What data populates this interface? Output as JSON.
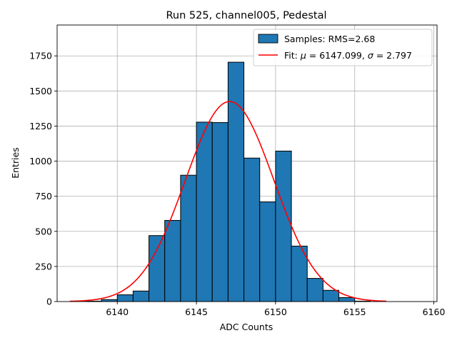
{
  "chart_data": {
    "type": "bar",
    "title": "Run 525, channel005, Pedestal",
    "xlabel": "ADC Counts",
    "ylabel": "Entries",
    "xlim": [
      6136.2,
      6160.2
    ],
    "ylim": [
      0,
      1970
    ],
    "xticks": [
      6140,
      6145,
      6150,
      6155,
      6160
    ],
    "yticks": [
      0,
      250,
      500,
      750,
      1000,
      1250,
      1500,
      1750
    ],
    "grid": true,
    "legend_position": "top-right",
    "bins": {
      "width": 1,
      "x": [
        6138,
        6139,
        6140,
        6141,
        6142,
        6143,
        6144,
        6145,
        6146,
        6147,
        6148,
        6149,
        6150,
        6151,
        6152,
        6153,
        6154,
        6155
      ],
      "values": [
        3,
        14,
        48,
        75,
        470,
        578,
        900,
        1278,
        1275,
        1705,
        1022,
        710,
        1072,
        395,
        165,
        80,
        28,
        3
      ]
    },
    "fit": {
      "mu": 6147.099,
      "sigma": 2.797,
      "amplitude": 1425,
      "x_range": [
        6137,
        6157
      ]
    },
    "series": [
      {
        "name": "Samples: RMS=2.68",
        "kind": "histogram",
        "color": "#1f77b4",
        "edge_color": "#000000"
      },
      {
        "name_prefix": "Fit: ",
        "name_mu": "μ",
        "name_mid": " = 6147.099, ",
        "name_sigma": "σ",
        "name_suffix": " = 2.797",
        "kind": "line",
        "color": "#ff0000"
      }
    ]
  }
}
